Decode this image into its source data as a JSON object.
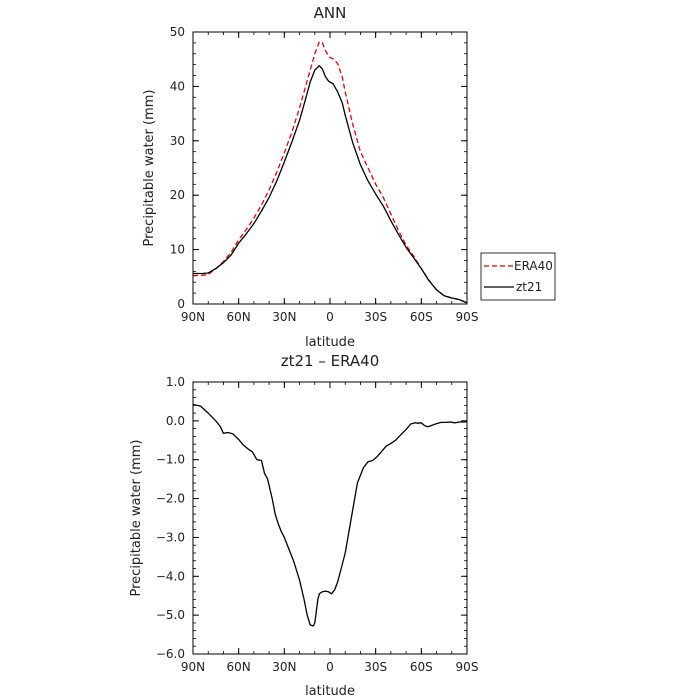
{
  "chart_data": [
    {
      "type": "line",
      "title": "ANN",
      "xlabel": "latitude",
      "ylabel": "Precipitable water  (mm)",
      "xlim": [
        90,
        -90
      ],
      "ylim": [
        0,
        50
      ],
      "x_tick_values": [
        90,
        60,
        30,
        0,
        -30,
        -60,
        -90
      ],
      "x_tick_labels": [
        "90N",
        "60N",
        "30N",
        "0",
        "30S",
        "60S",
        "90S"
      ],
      "y_tick_values": [
        0,
        10,
        20,
        30,
        40,
        50
      ],
      "y_tick_labels": [
        "0",
        "10",
        "20",
        "30",
        "40",
        "50"
      ],
      "legend": "right",
      "series": [
        {
          "name": "ERA40",
          "color": "#e00000",
          "dash": true,
          "x": [
            90,
            84,
            80,
            75,
            70,
            65,
            60,
            55,
            50,
            45,
            40,
            35,
            30,
            25,
            20,
            16,
            13,
            10,
            7,
            5,
            3,
            1,
            0,
            -2,
            -5,
            -8,
            -10,
            -15,
            -20,
            -25,
            -30,
            -35,
            -40,
            -45,
            -50,
            -55,
            -60,
            -65,
            -70,
            -75,
            -80,
            -85,
            -90
          ],
          "values": [
            5.2,
            5.3,
            5.4,
            6.5,
            7.8,
            9.5,
            11.8,
            13.7,
            15.8,
            18.2,
            21.0,
            24.2,
            27.8,
            31.6,
            36.1,
            40.0,
            43.0,
            46.0,
            48.2,
            48.0,
            46.6,
            45.6,
            45.3,
            45.1,
            44.2,
            41.8,
            39.0,
            33.0,
            28.0,
            25.0,
            22.0,
            19.6,
            16.5,
            13.5,
            10.8,
            8.8,
            6.5,
            4.4,
            2.6,
            1.5,
            1.1,
            0.8,
            0.2
          ]
        },
        {
          "name": "zt21",
          "color": "#000000",
          "dash": false,
          "x": [
            90,
            84,
            80,
            75,
            70,
            65,
            60,
            55,
            50,
            45,
            40,
            35,
            30,
            25,
            20,
            16,
            13,
            10,
            7,
            5,
            3,
            1,
            0,
            -2,
            -5,
            -8,
            -10,
            -15,
            -20,
            -25,
            -30,
            -35,
            -40,
            -45,
            -50,
            -55,
            -60,
            -65,
            -70,
            -75,
            -80,
            -85,
            -90
          ],
          "values": [
            5.6,
            5.6,
            5.7,
            6.5,
            7.6,
            9.0,
            11.2,
            12.9,
            14.8,
            17.1,
            19.6,
            22.6,
            26.1,
            29.8,
            33.8,
            37.7,
            40.8,
            43.0,
            43.8,
            43.2,
            41.8,
            41.0,
            40.8,
            40.5,
            39.0,
            37.0,
            34.7,
            29.6,
            25.6,
            22.6,
            20.2,
            18.0,
            15.3,
            12.8,
            10.4,
            8.5,
            6.5,
            4.3,
            2.6,
            1.5,
            1.1,
            0.8,
            0.2
          ]
        }
      ]
    },
    {
      "type": "line",
      "title": "zt21  –  ERA40",
      "xlabel": "latitude",
      "ylabel": "Precipitable water  (mm)",
      "xlim": [
        90,
        -90
      ],
      "ylim": [
        -6,
        1
      ],
      "x_tick_values": [
        90,
        60,
        30,
        0,
        -30,
        -60,
        -90
      ],
      "x_tick_labels": [
        "90N",
        "60N",
        "30N",
        "0",
        "30S",
        "60S",
        "90S"
      ],
      "y_tick_values": [
        1,
        0,
        -1,
        -2,
        -3,
        -4,
        -5,
        -6
      ],
      "y_tick_labels": [
        "1.0",
        "0.0",
        "−1.0",
        "−2.0",
        "−3.0",
        "−4.0",
        "−5.0",
        "−6.0"
      ],
      "series": [
        {
          "color": "#000000",
          "dash": false,
          "x": [
            90,
            85,
            80,
            75,
            72,
            70,
            67,
            64,
            60,
            57,
            54,
            51,
            48,
            45,
            43,
            41,
            38,
            36,
            34,
            32,
            30,
            27,
            24,
            20,
            17,
            15,
            13,
            11,
            10,
            9,
            8,
            7,
            6,
            5,
            3,
            1,
            -1,
            -3,
            -5,
            -7,
            -10,
            -14,
            -18,
            -22,
            -25,
            -28,
            -31,
            -34,
            -37,
            -40,
            -43,
            -46,
            -50,
            -53,
            -56,
            -58,
            -60,
            -62,
            -64,
            -66,
            -68,
            -70,
            -73,
            -76,
            -79,
            -82,
            -85,
            -88,
            -90
          ],
          "values": [
            0.42,
            0.38,
            0.2,
            0.0,
            -0.15,
            -0.32,
            -0.3,
            -0.33,
            -0.48,
            -0.62,
            -0.72,
            -0.8,
            -1.0,
            -1.02,
            -1.35,
            -1.5,
            -2.0,
            -2.4,
            -2.65,
            -2.85,
            -3.0,
            -3.3,
            -3.6,
            -4.1,
            -4.6,
            -5.0,
            -5.25,
            -5.28,
            -5.2,
            -4.9,
            -4.6,
            -4.45,
            -4.42,
            -4.4,
            -4.38,
            -4.4,
            -4.45,
            -4.35,
            -4.15,
            -3.85,
            -3.4,
            -2.5,
            -1.6,
            -1.2,
            -1.05,
            -1.02,
            -0.92,
            -0.78,
            -0.65,
            -0.58,
            -0.5,
            -0.38,
            -0.22,
            -0.08,
            -0.05,
            -0.06,
            -0.05,
            -0.12,
            -0.15,
            -0.13,
            -0.1,
            -0.07,
            -0.04,
            -0.04,
            -0.03,
            -0.05,
            -0.03,
            -0.03,
            -0.02
          ]
        }
      ]
    }
  ]
}
